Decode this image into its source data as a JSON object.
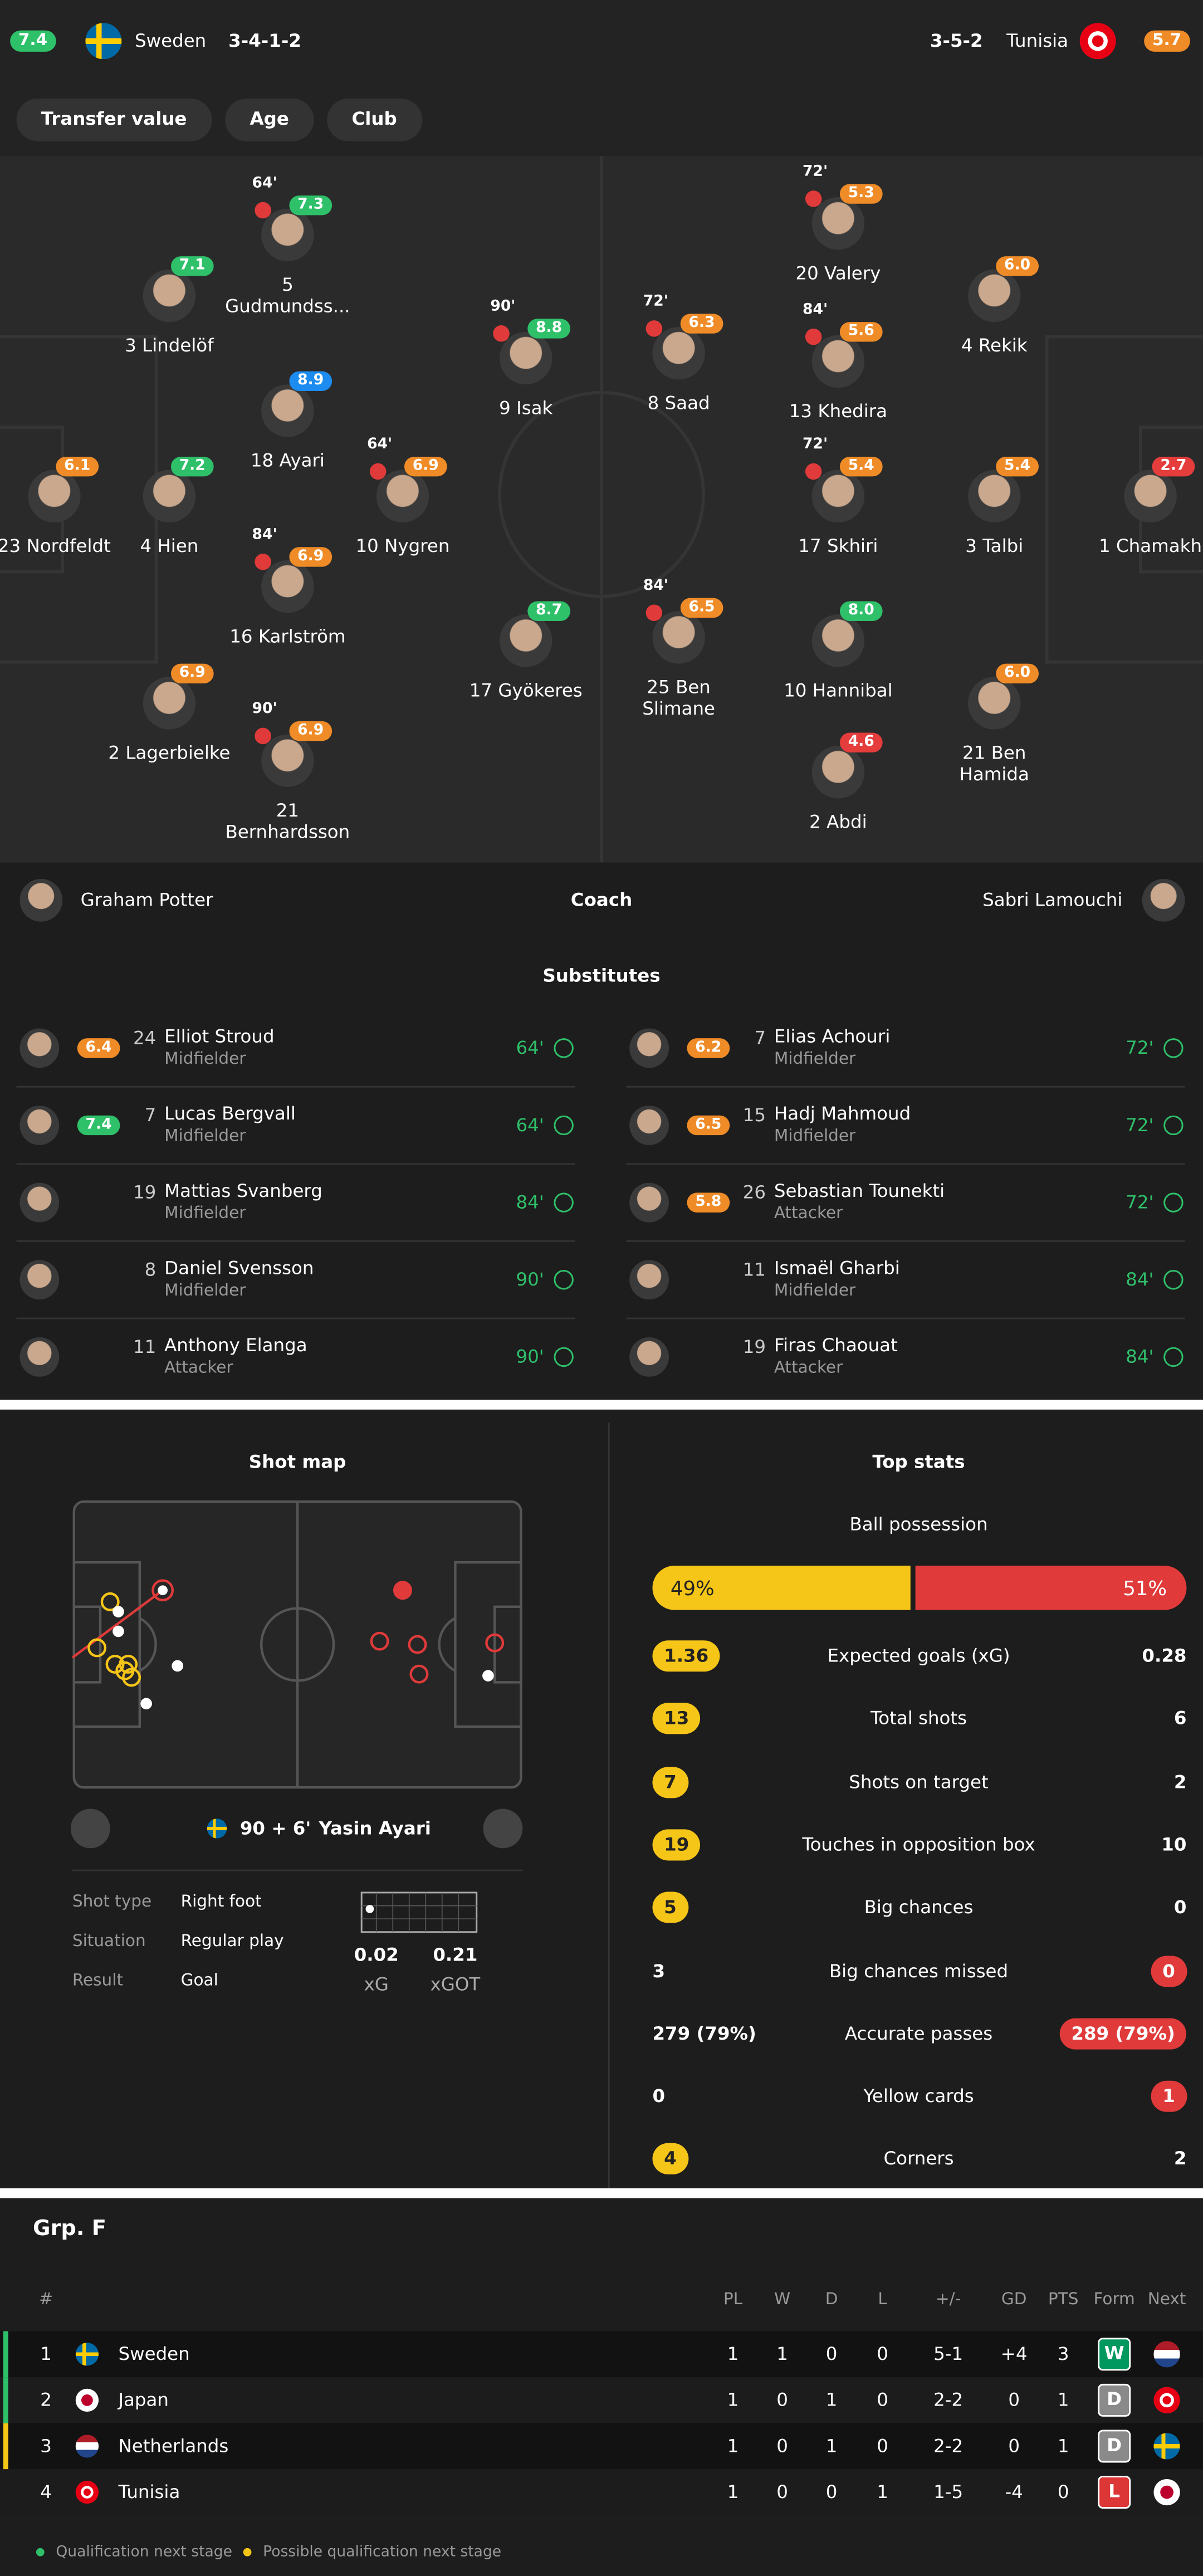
{
  "header": {
    "home": {
      "rating": "7.4",
      "team": "Sweden",
      "formation": "3-4-1-2"
    },
    "away": {
      "rating": "5.7",
      "team": "Tunisia",
      "formation": "3-5-2"
    }
  },
  "tabs": [
    "Transfer value",
    "Age",
    "Club"
  ],
  "lineup": {
    "home": [
      {
        "number": "23",
        "name": "Nordfeldt",
        "rating": "6.1"
      },
      {
        "number": "4",
        "name": "Hien",
        "rating": "7.2"
      },
      {
        "number": "3",
        "name": "Lindelöf",
        "rating": "7.1"
      },
      {
        "number": "2",
        "name": "Lagerbielke",
        "rating": "6.9"
      },
      {
        "number": "5",
        "name": "Gudmundss...",
        "rating": "7.3",
        "sub_minute": "64'"
      },
      {
        "number": "18",
        "name": "Ayari",
        "rating": "8.9",
        "player_of_the_match": true
      },
      {
        "number": "16",
        "name": "Karlström",
        "rating": "6.9",
        "sub_minute": "84'"
      },
      {
        "number": "21",
        "name": "Bernhardsson",
        "rating": "6.9",
        "sub_minute": "90'"
      },
      {
        "number": "10",
        "name": "Nygren",
        "rating": "6.9",
        "sub_minute": "64'"
      },
      {
        "number": "9",
        "name": "Isak",
        "rating": "8.8",
        "sub_minute": "90'"
      },
      {
        "number": "17",
        "name": "Gyökeres",
        "rating": "8.7"
      }
    ],
    "away": [
      {
        "number": "1",
        "name": "Chamakh",
        "rating": "2.7"
      },
      {
        "number": "4",
        "name": "Rekik",
        "rating": "6.0"
      },
      {
        "number": "3",
        "name": "Talbi",
        "rating": "5.4"
      },
      {
        "number": "21",
        "name": "Ben Hamida",
        "rating": "6.0"
      },
      {
        "number": "20",
        "name": "Valery",
        "rating": "5.3",
        "sub_minute": "72'"
      },
      {
        "number": "13",
        "name": "Khedira",
        "rating": "5.6",
        "sub_minute": "84'"
      },
      {
        "number": "17",
        "name": "Skhiri",
        "rating": "5.4",
        "sub_minute": "72'"
      },
      {
        "number": "10",
        "name": "Hannibal",
        "rating": "8.0"
      },
      {
        "number": "2",
        "name": "Abdi",
        "rating": "4.6"
      },
      {
        "number": "8",
        "name": "Saad",
        "rating": "6.3",
        "sub_minute": "72'"
      },
      {
        "number": "25",
        "name": "Ben Slimane",
        "rating": "6.5",
        "sub_minute": "84'"
      }
    ]
  },
  "coach": {
    "label": "Coach",
    "home": "Graham Potter",
    "away": "Sabri Lamouchi"
  },
  "substitutes": {
    "title": "Substitutes",
    "home": [
      {
        "number": "24",
        "name": "Elliot Stroud",
        "position": "Midfielder",
        "minute": "64'",
        "rating": "6.4"
      },
      {
        "number": "7",
        "name": "Lucas Bergvall",
        "position": "Midfielder",
        "minute": "64'",
        "rating": "7.4"
      },
      {
        "number": "19",
        "name": "Mattias Svanberg",
        "position": "Midfielder",
        "minute": "84'"
      },
      {
        "number": "8",
        "name": "Daniel Svensson",
        "position": "Midfielder",
        "minute": "90'"
      },
      {
        "number": "11",
        "name": "Anthony Elanga",
        "position": "Attacker",
        "minute": "90'"
      }
    ],
    "away": [
      {
        "number": "7",
        "name": "Elias Achouri",
        "position": "Midfielder",
        "minute": "72'",
        "rating": "6.2"
      },
      {
        "number": "15",
        "name": "Hadj Mahmoud",
        "position": "Midfielder",
        "minute": "72'",
        "rating": "6.5"
      },
      {
        "number": "26",
        "name": "Sebastian Tounekti",
        "position": "Attacker",
        "minute": "72'",
        "rating": "5.8"
      },
      {
        "number": "11",
        "name": "Ismaël Gharbi",
        "position": "Midfielder",
        "minute": "84'"
      },
      {
        "number": "19",
        "name": "Firas Chaouat",
        "position": "Attacker",
        "minute": "84'"
      }
    ]
  },
  "shot_map": {
    "title": "Shot map",
    "time": "90 + 6'",
    "player": "Yasin Ayari",
    "details": [
      {
        "label": "Shot type",
        "value": "Right foot"
      },
      {
        "label": "Situation",
        "value": "Regular play"
      },
      {
        "label": "Result",
        "value": "Goal"
      }
    ],
    "xg": {
      "value": "0.02",
      "label": "xG"
    },
    "xgot": {
      "value": "0.21",
      "label": "xGOT"
    }
  },
  "top_stats": {
    "title": "Top stats",
    "possession": {
      "label": "Ball possession",
      "home": 49,
      "away": 51,
      "home_label": "49%",
      "away_label": "51%"
    },
    "rows": [
      {
        "home": "1.36",
        "label": "Expected goals (xG)",
        "away": "0.28",
        "highlight": "home"
      },
      {
        "home": "13",
        "label": "Total shots",
        "away": "6",
        "highlight": "home"
      },
      {
        "home": "7",
        "label": "Shots on target",
        "away": "2",
        "highlight": "home"
      },
      {
        "home": "19",
        "label": "Touches in opposition box",
        "away": "10",
        "highlight": "home"
      },
      {
        "home": "5",
        "label": "Big chances",
        "away": "0",
        "highlight": "home"
      },
      {
        "home": "3",
        "label": "Big chances missed",
        "away": "0",
        "highlight": "away"
      },
      {
        "home": "279 (79%)",
        "label": "Accurate passes",
        "away": "289 (79%)",
        "highlight": "away"
      },
      {
        "home": "0",
        "label": "Yellow cards",
        "away": "1",
        "highlight": "away"
      },
      {
        "home": "4",
        "label": "Corners",
        "away": "2",
        "highlight": "home"
      }
    ]
  },
  "group": {
    "title": "Grp. F",
    "columns": [
      "#",
      "PL",
      "W",
      "D",
      "L",
      "+/-",
      "GD",
      "PTS",
      "Form",
      "Next"
    ],
    "rows": [
      {
        "rank": "1",
        "team": "Sweden",
        "stats": [
          "1",
          "1",
          "0",
          "0",
          "5-1",
          "+4",
          "3"
        ],
        "form": "W"
      },
      {
        "rank": "2",
        "team": "Japan",
        "stats": [
          "1",
          "0",
          "1",
          "0",
          "2-2",
          "0",
          "1"
        ],
        "form": "D"
      },
      {
        "rank": "3",
        "team": "Netherlands",
        "stats": [
          "1",
          "0",
          "1",
          "0",
          "2-2",
          "0",
          "1"
        ],
        "form": "D"
      },
      {
        "rank": "4",
        "team": "Tunisia",
        "stats": [
          "1",
          "0",
          "0",
          "1",
          "1-5",
          "-4",
          "0"
        ],
        "form": "L"
      }
    ],
    "legend": [
      "Qualification next stage",
      "Possible qualification next stage"
    ]
  }
}
